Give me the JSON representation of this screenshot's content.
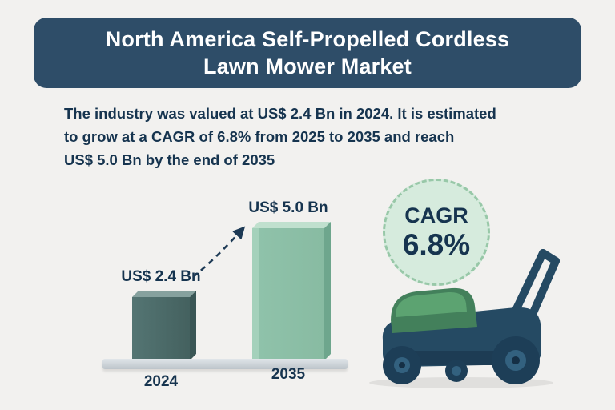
{
  "title": {
    "line1": "North America Self-Propelled Cordless",
    "line2": "Lawn Mower Market"
  },
  "description": {
    "lines": [
      "The industry was valued at US$ 2.4 Bn in 2024. It is estimated",
      "to grow at a CAGR of 6.8% from 2025 to 2035 and reach",
      "US$ 5.0 Bn by the end of 2035"
    ]
  },
  "chart_data": {
    "type": "bar",
    "title": "North America Self-Propelled Cordless Lawn Mower Market",
    "categories": [
      "2024",
      "2035"
    ],
    "values": [
      2.4,
      5.0
    ],
    "value_labels": [
      "US$ 2.4 Bn",
      "US$ 5.0 Bn"
    ],
    "unit": "US$ Bn",
    "xlabel": "",
    "ylabel": "",
    "ylim": [
      0,
      5.0
    ],
    "grid": false,
    "legend": "none",
    "annotations": [
      "dashed growth arrow from 2024 bar to 2035 bar",
      "CAGR 6.8% (2025 to 2035)"
    ]
  },
  "cagr_badge": {
    "label": "CAGR",
    "value": "6.8%"
  },
  "illustration": {
    "name": "self-propelled cordless lawn mower"
  },
  "colors": {
    "background": "#f2f1ef",
    "banner": "#2e4d68",
    "banner_text": "#ffffff",
    "text": "#16344f",
    "bar_2024": "#4a6c6b",
    "bar_2035": "#8fc2aa",
    "badge_fill": "#d6ebdd",
    "badge_border": "#98c8a8",
    "platform": "#c4ccd2",
    "mower_body": "#254a63",
    "mower_hood": "#4f8d60"
  }
}
